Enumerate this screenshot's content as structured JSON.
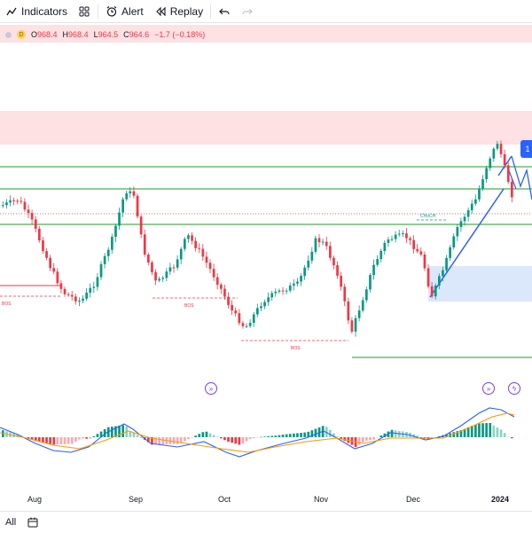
{
  "toolbar": {
    "indicators_label": "Indicators",
    "alert_label": "Alert",
    "replay_label": "Replay"
  },
  "legend": {
    "interval_badge": "D",
    "open_label": "O",
    "open": "968.4",
    "high_label": "H",
    "high": "968.4",
    "low_label": "L",
    "low": "964.5",
    "close_label": "C",
    "close": "964.6",
    "change": "−1.7 (−0.18%)"
  },
  "annotations": {
    "bos_1": "BOS",
    "bos_2": "BOS",
    "bos_3": "BOS",
    "choch": "CHoCH"
  },
  "price_tag_text": "1",
  "x_axis": {
    "labels": [
      "Aug",
      "Sep",
      "Oct",
      "Nov",
      "Dec",
      "2024"
    ]
  },
  "bottom": {
    "range_label": "All"
  },
  "colors": {
    "up": "#089981",
    "down": "#f23645",
    "macd": "#2962ff",
    "signal": "#ff9800",
    "level": "#4caf50",
    "zone_red": "#fde1e3",
    "zone_blue": "#dbe7fb"
  },
  "icons": {
    "indicators": "indicators-icon",
    "layout": "layout-grid-icon",
    "alert": "alarm-clock-icon",
    "replay": "replay-icon",
    "undo": "undo-icon",
    "redo": "redo-icon",
    "calendar": "calendar-icon",
    "events": "fast-forward-icon",
    "earnings": "lightning-icon"
  }
}
